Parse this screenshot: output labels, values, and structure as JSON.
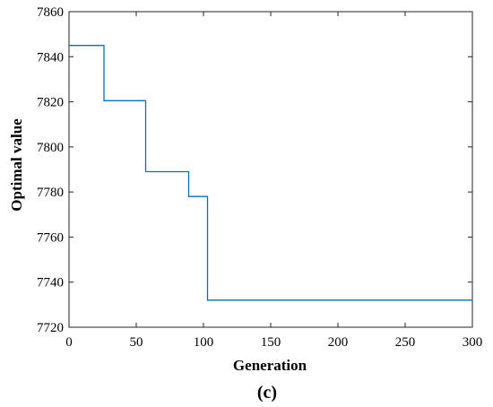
{
  "chart_data": {
    "type": "line",
    "title": "",
    "xlabel": "Generation",
    "ylabel": "Optimal value",
    "panel_label": "(c)",
    "xlim": [
      0,
      300
    ],
    "ylim": [
      7720,
      7860
    ],
    "xticks": [
      0,
      50,
      100,
      150,
      200,
      250,
      300
    ],
    "yticks": [
      7720,
      7740,
      7760,
      7780,
      7800,
      7820,
      7840,
      7860
    ],
    "grid": false,
    "step": true,
    "line_color": "#0072BD",
    "series": [
      {
        "x": [
          0,
          26,
          26,
          57,
          57,
          89,
          89,
          103,
          103,
          300
        ],
        "y": [
          7845,
          7845,
          7820.5,
          7820.5,
          7789,
          7789,
          7778,
          7778,
          7732,
          7732
        ]
      }
    ]
  }
}
